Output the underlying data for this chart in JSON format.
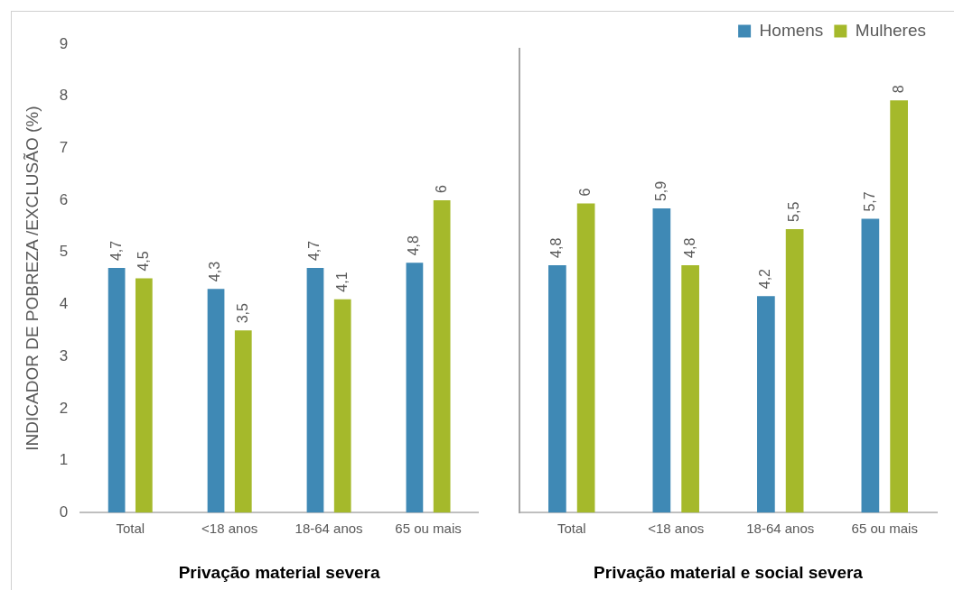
{
  "chart_data": [
    {
      "type": "bar",
      "xlabel": "Privação material severa",
      "ylabel": "INDICADOR DE POBREZA /EXCLUSÃO (%)",
      "categories": [
        "Total",
        "<18 anos",
        "18-64 anos",
        "65 ou mais"
      ],
      "ylim": [
        0,
        9
      ],
      "yticks": [
        0,
        1,
        2,
        3,
        4,
        5,
        6,
        7,
        8,
        9
      ],
      "grid": false,
      "legend": false,
      "series": [
        {
          "color": "#3f89b5",
          "values": [
            4.7,
            4.3,
            4.7,
            4.8
          ],
          "value_labels": [
            "4,7",
            "4,3",
            "4,7",
            "4,8"
          ]
        },
        {
          "color": "#a5b92b",
          "values": [
            4.5,
            3.5,
            4.1,
            6
          ],
          "value_labels": [
            "4,5",
            "3,5",
            "4,1",
            "6"
          ]
        }
      ]
    },
    {
      "type": "bar",
      "xlabel": "Privação material e social severa",
      "categories": [
        "Total",
        "<18 anos",
        "18-64 anos",
        "65 ou mais"
      ],
      "ylim": [
        0,
        9
      ],
      "yticks": [
        0,
        1,
        2,
        3,
        4,
        5,
        6,
        7,
        8,
        9
      ],
      "grid": false,
      "legend": "top right",
      "tick_labels": "x",
      "series": [
        {
          "name": "Homens",
          "color": "#3f89b5",
          "values": [
            4.8,
            5.9,
            4.2,
            5.7
          ],
          "value_labels": [
            "4,8",
            "5,9",
            "4,2",
            "5,7"
          ]
        },
        {
          "name": "Mulheres",
          "color": "#a5b92b",
          "values": [
            6,
            4.8,
            5.5,
            8
          ],
          "value_labels": [
            "6",
            "4,8",
            "5,5",
            "8"
          ]
        }
      ]
    }
  ]
}
